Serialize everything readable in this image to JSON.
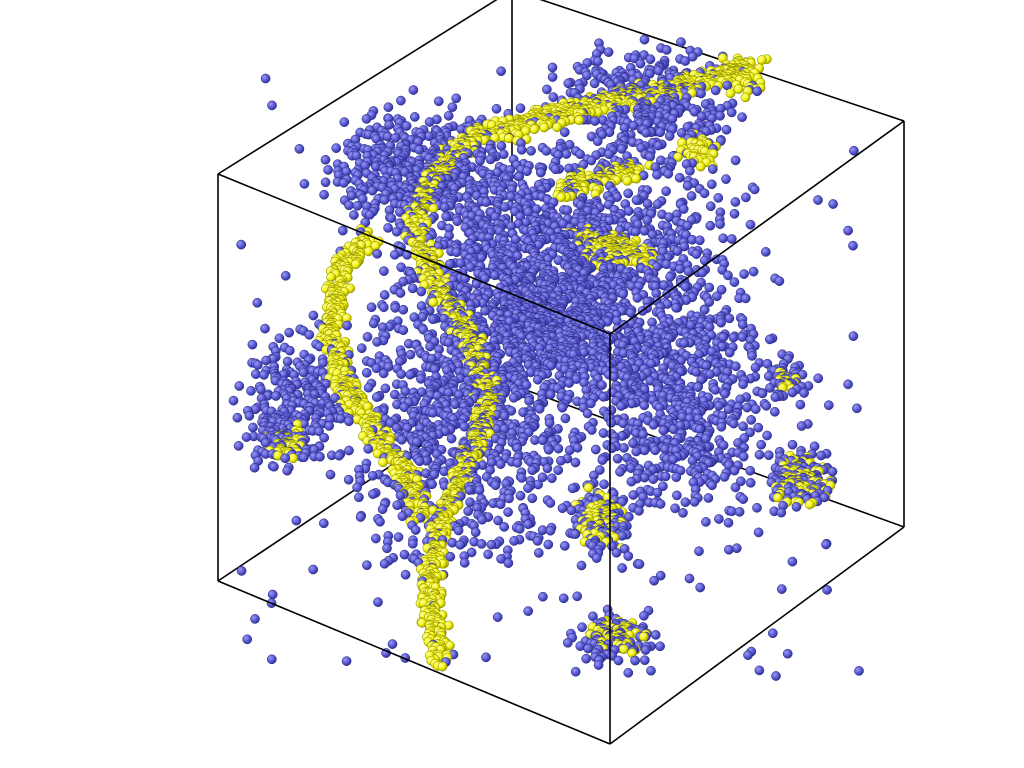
{
  "scene": {
    "description_colors": {
      "background": "#ffffff",
      "box_edge": "#000000",
      "type_a": "#5a5ad6",
      "type_a_shade": "#3a3aa0",
      "type_b": "#f2f20e",
      "type_b_shade": "#a8a800"
    },
    "particle_types": [
      "type_a",
      "type_b"
    ]
  }
}
